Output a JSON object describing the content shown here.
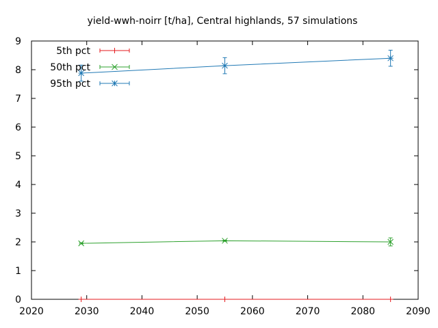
{
  "chart_data": {
    "type": "line",
    "title": "yield-wwh-noirr [t/ha], Central highlands, 57 simulations",
    "xlabel": "",
    "ylabel": "",
    "xlim": [
      2020,
      2090
    ],
    "ylim": [
      0,
      9
    ],
    "xticks": [
      2020,
      2030,
      2040,
      2050,
      2060,
      2070,
      2080,
      2090
    ],
    "yticks": [
      0,
      1,
      2,
      3,
      4,
      5,
      6,
      7,
      8,
      9
    ],
    "grid": false,
    "legend_position": "top-left",
    "series": [
      {
        "name": "5th pct",
        "color": "#e41a1c",
        "marker": "plus",
        "x": [
          2029,
          2055,
          2085
        ],
        "y": [
          0,
          0,
          0
        ],
        "err_low": [
          0,
          0,
          0
        ],
        "err_high": [
          0,
          0,
          0
        ]
      },
      {
        "name": "50th pct",
        "color": "#2ca02c",
        "marker": "cross",
        "x": [
          2029,
          2055,
          2085
        ],
        "y": [
          1.95,
          2.04,
          2.0
        ],
        "err_low": [
          1.93,
          2.02,
          1.86
        ],
        "err_high": [
          1.97,
          2.06,
          2.14
        ]
      },
      {
        "name": "95th pct",
        "color": "#1f78b4",
        "marker": "star",
        "x": [
          2029,
          2055,
          2085
        ],
        "y": [
          7.88,
          8.14,
          8.4
        ],
        "err_low": [
          7.6,
          7.86,
          8.12
        ],
        "err_high": [
          8.16,
          8.42,
          8.68
        ]
      }
    ]
  }
}
